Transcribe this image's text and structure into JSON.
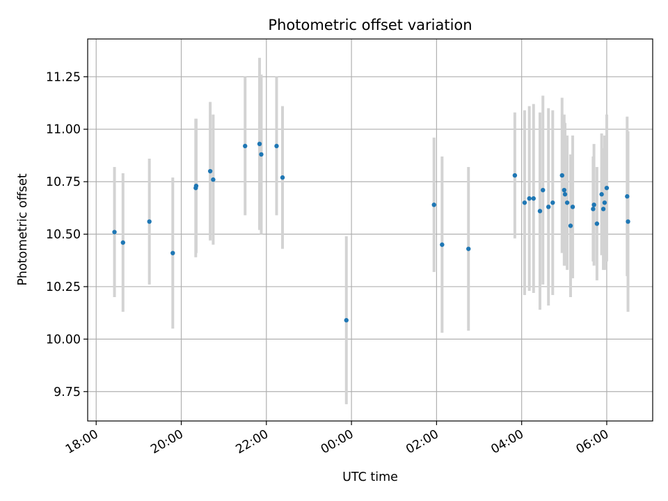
{
  "chart_data": {
    "type": "scatter",
    "title": "Photometric offset variation",
    "xlabel": "UTC time",
    "ylabel": "Photometric offset",
    "x_tick_labels": [
      "18:00",
      "20:00",
      "22:00",
      "00:00",
      "02:00",
      "04:00",
      "06:00"
    ],
    "x_tick_hours": [
      18,
      20,
      22,
      24,
      26,
      28,
      30
    ],
    "y_ticks": [
      9.75,
      10.0,
      10.25,
      10.5,
      10.75,
      11.0,
      11.25
    ],
    "y_tick_labels": [
      "9.75",
      "10.00",
      "10.25",
      "10.50",
      "10.75",
      "11.00",
      "11.25"
    ],
    "xlim_hours": [
      17.8,
      31.08
    ],
    "ylim": [
      9.61,
      11.43
    ],
    "grid": true,
    "colors": {
      "point": "#1f77b4",
      "errorbar": "#d3d3d3",
      "grid": "#b0b0b0"
    },
    "points": [
      {
        "x": 18.43,
        "y": 10.51,
        "err": 0.31
      },
      {
        "x": 18.63,
        "y": 10.46,
        "err": 0.33
      },
      {
        "x": 19.25,
        "y": 10.56,
        "err": 0.3
      },
      {
        "x": 19.8,
        "y": 10.41,
        "err": 0.36
      },
      {
        "x": 20.34,
        "y": 10.72,
        "err": 0.33
      },
      {
        "x": 20.35,
        "y": 10.73,
        "err": 0.32
      },
      {
        "x": 20.68,
        "y": 10.8,
        "err": 0.33
      },
      {
        "x": 20.75,
        "y": 10.76,
        "err": 0.31
      },
      {
        "x": 21.5,
        "y": 10.92,
        "err": 0.33
      },
      {
        "x": 21.84,
        "y": 10.93,
        "err": 0.41
      },
      {
        "x": 21.88,
        "y": 10.88,
        "err": 0.38
      },
      {
        "x": 22.24,
        "y": 10.92,
        "err": 0.33
      },
      {
        "x": 22.38,
        "y": 10.77,
        "err": 0.34
      },
      {
        "x": 23.88,
        "y": 10.09,
        "err": 0.4
      },
      {
        "x": 25.94,
        "y": 10.64,
        "err": 0.32
      },
      {
        "x": 26.13,
        "y": 10.45,
        "err": 0.42
      },
      {
        "x": 26.75,
        "y": 10.43,
        "err": 0.39
      },
      {
        "x": 27.84,
        "y": 10.78,
        "err": 0.3
      },
      {
        "x": 28.07,
        "y": 10.65,
        "err": 0.44
      },
      {
        "x": 28.18,
        "y": 10.67,
        "err": 0.44
      },
      {
        "x": 28.28,
        "y": 10.67,
        "err": 0.45
      },
      {
        "x": 28.43,
        "y": 10.61,
        "err": 0.47
      },
      {
        "x": 28.5,
        "y": 10.71,
        "err": 0.45
      },
      {
        "x": 28.63,
        "y": 10.63,
        "err": 0.47
      },
      {
        "x": 28.73,
        "y": 10.65,
        "err": 0.44
      },
      {
        "x": 28.95,
        "y": 10.78,
        "err": 0.37
      },
      {
        "x": 29.0,
        "y": 10.71,
        "err": 0.36
      },
      {
        "x": 29.02,
        "y": 10.69,
        "err": 0.34
      },
      {
        "x": 29.07,
        "y": 10.65,
        "err": 0.32
      },
      {
        "x": 29.15,
        "y": 10.54,
        "err": 0.34
      },
      {
        "x": 29.2,
        "y": 10.63,
        "err": 0.34
      },
      {
        "x": 29.68,
        "y": 10.62,
        "err": 0.25
      },
      {
        "x": 29.7,
        "y": 10.64,
        "err": 0.29
      },
      {
        "x": 29.77,
        "y": 10.55,
        "err": 0.27
      },
      {
        "x": 29.88,
        "y": 10.69,
        "err": 0.29
      },
      {
        "x": 29.92,
        "y": 10.62,
        "err": 0.29
      },
      {
        "x": 29.95,
        "y": 10.65,
        "err": 0.32
      },
      {
        "x": 30.0,
        "y": 10.72,
        "err": 0.35
      },
      {
        "x": 30.48,
        "y": 10.68,
        "err": 0.38
      },
      {
        "x": 30.5,
        "y": 10.56,
        "err": 0.43
      }
    ]
  }
}
